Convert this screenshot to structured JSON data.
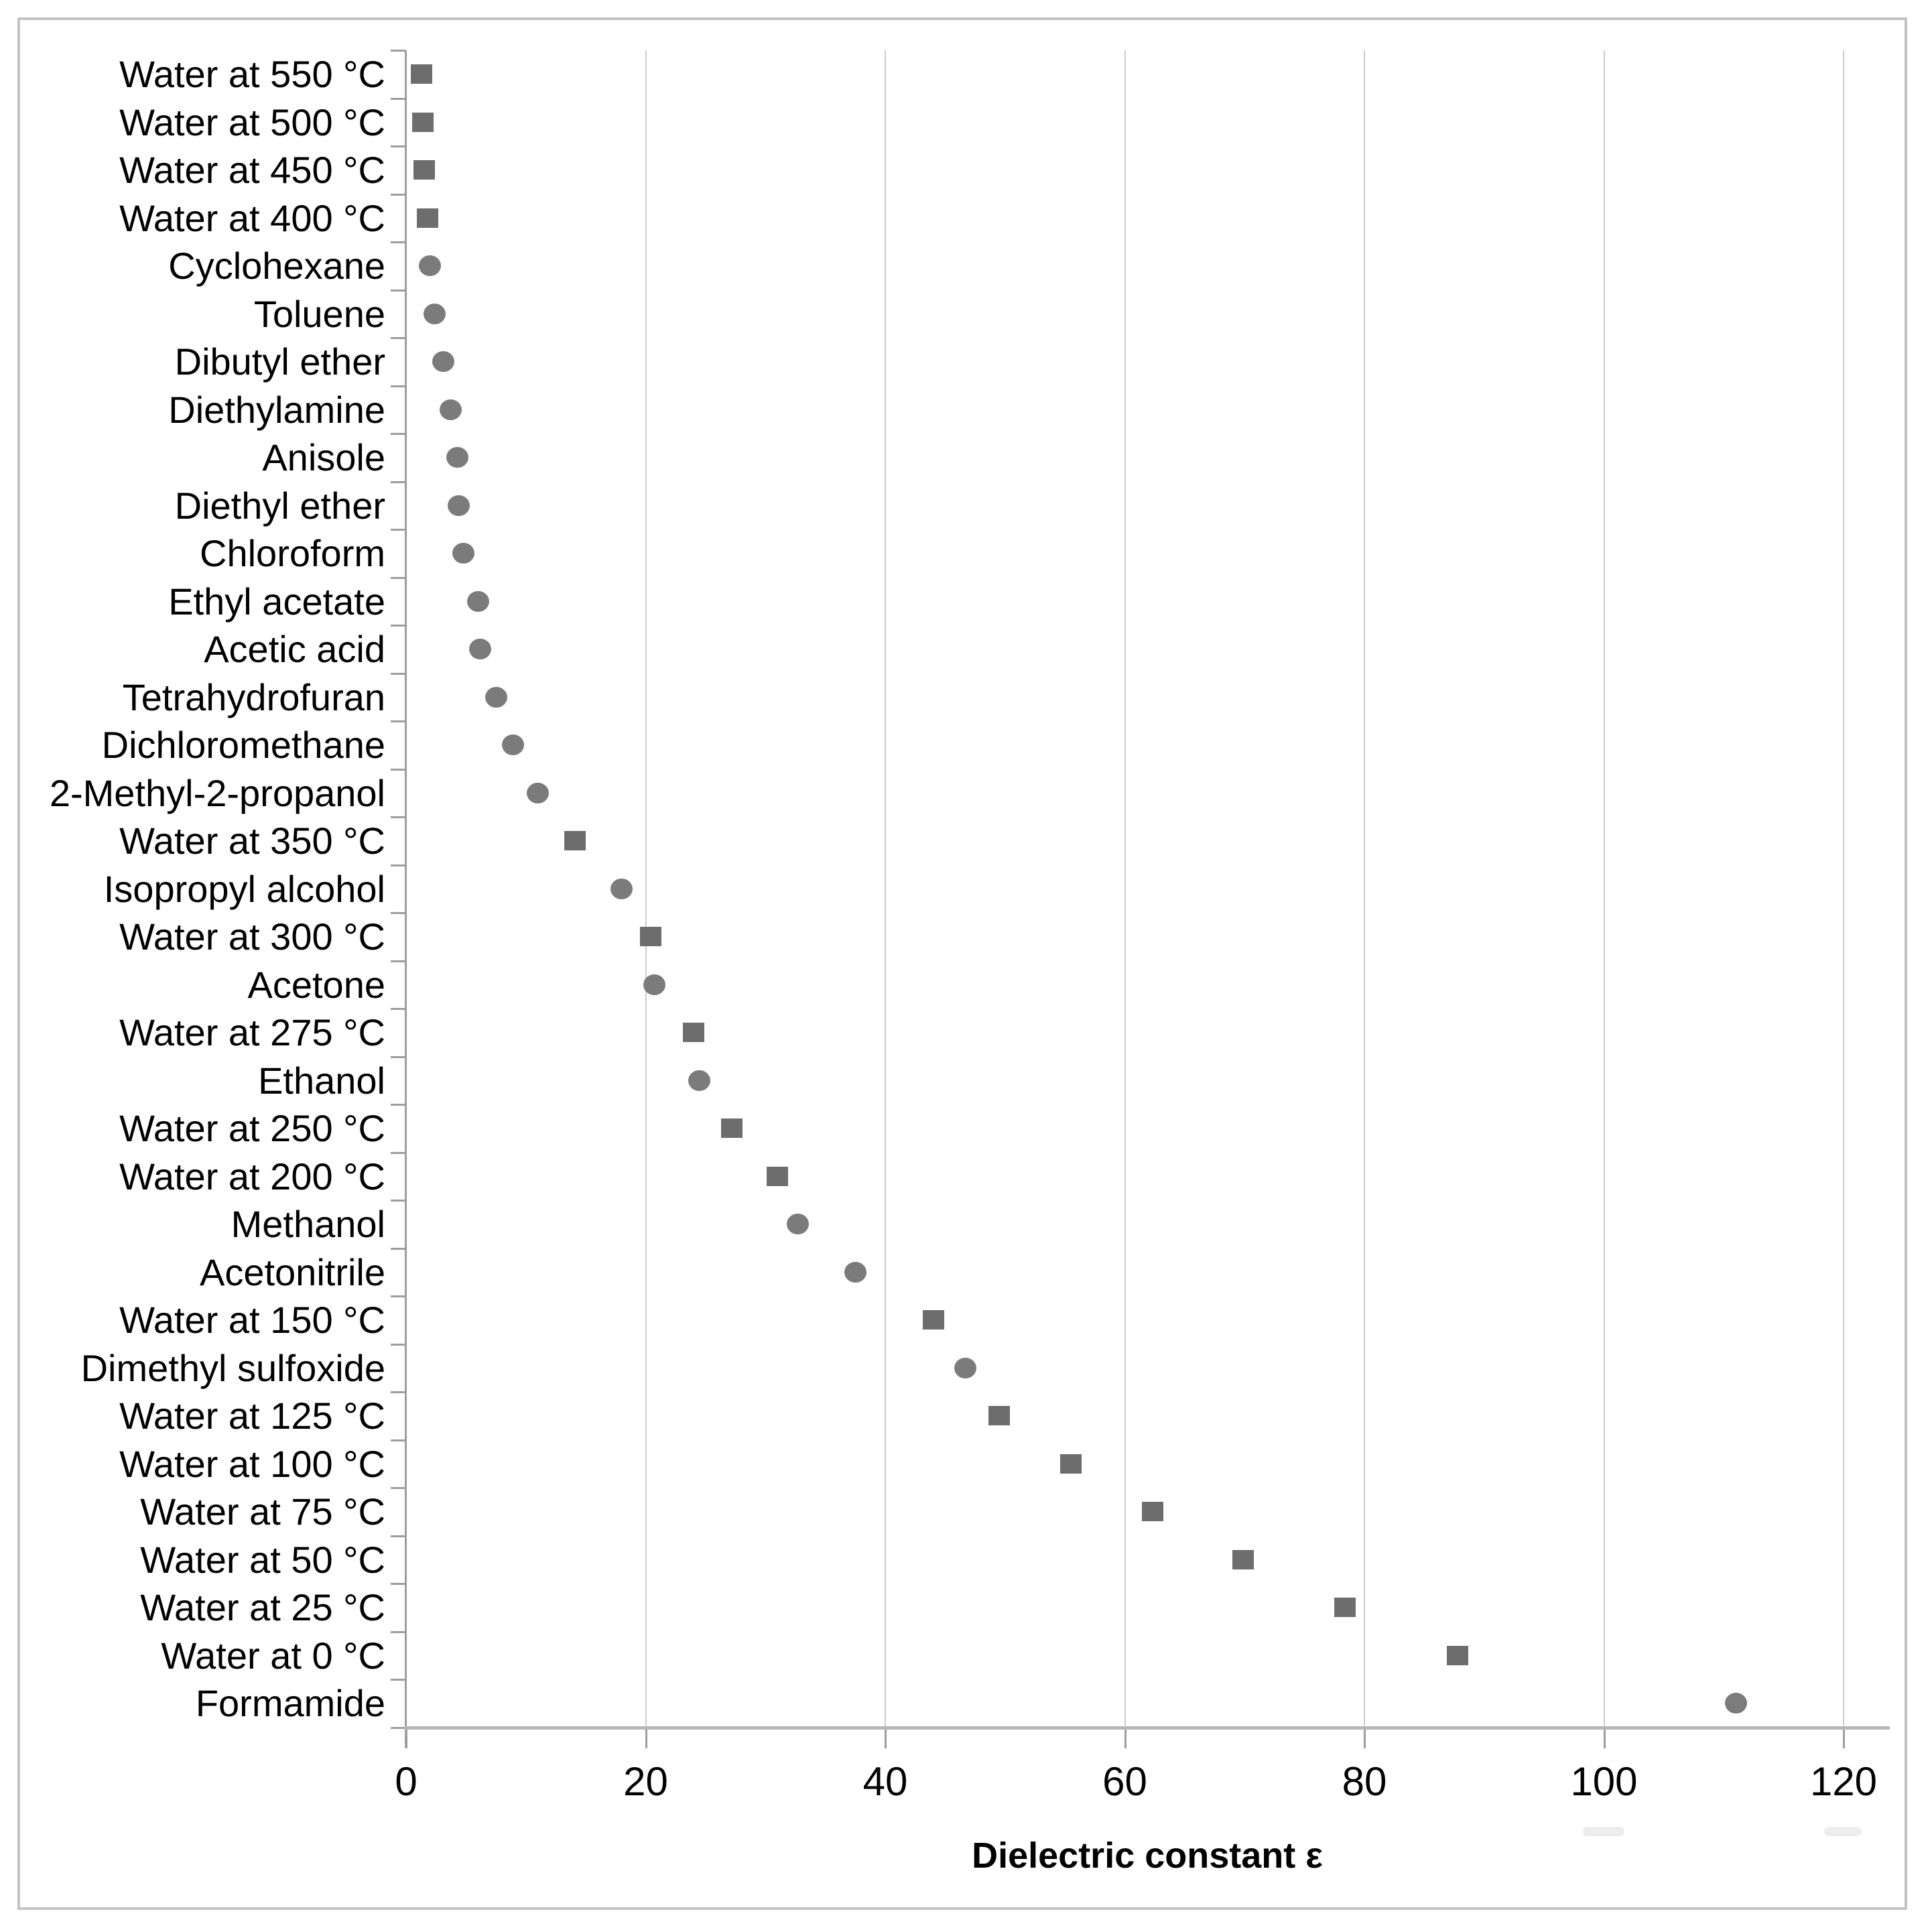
{
  "chart_data": {
    "type": "scatter",
    "orientation": "horizontal-categories",
    "title": "",
    "xlabel": "Dielectric constant ε",
    "ylabel": "",
    "xlim": [
      0,
      120
    ],
    "x_ticks": [
      0,
      20,
      40,
      60,
      80,
      100,
      120
    ],
    "grid": "vertical gridlines at each x tick",
    "legend_position": "none",
    "marker_semantics": {
      "square": "water at given temperature",
      "circle": "organic solvent at ambient conditions"
    },
    "points": [
      {
        "label": "Water at 550 °C",
        "value": 1.3,
        "marker": "square"
      },
      {
        "label": "Water at 500 °C",
        "value": 1.4,
        "marker": "square"
      },
      {
        "label": "Water at 450 °C",
        "value": 1.5,
        "marker": "square"
      },
      {
        "label": "Water at 400 °C",
        "value": 1.8,
        "marker": "square"
      },
      {
        "label": "Cyclohexane",
        "value": 2.0,
        "marker": "circle"
      },
      {
        "label": "Toluene",
        "value": 2.4,
        "marker": "circle"
      },
      {
        "label": "Dibutyl ether",
        "value": 3.1,
        "marker": "circle"
      },
      {
        "label": "Diethylamine",
        "value": 3.7,
        "marker": "circle"
      },
      {
        "label": "Anisole",
        "value": 4.3,
        "marker": "circle"
      },
      {
        "label": "Diethyl ether",
        "value": 4.4,
        "marker": "circle"
      },
      {
        "label": "Chloroform",
        "value": 4.8,
        "marker": "circle"
      },
      {
        "label": "Ethyl acetate",
        "value": 6.0,
        "marker": "circle"
      },
      {
        "label": "Acetic acid",
        "value": 6.2,
        "marker": "circle"
      },
      {
        "label": "Tetrahydrofuran",
        "value": 7.5,
        "marker": "circle"
      },
      {
        "label": "Dichloromethane",
        "value": 8.9,
        "marker": "circle"
      },
      {
        "label": "2-Methyl-2-propanol",
        "value": 11.0,
        "marker": "circle"
      },
      {
        "label": "Water at 350 °C",
        "value": 14.1,
        "marker": "square"
      },
      {
        "label": "Isopropyl alcohol",
        "value": 18.0,
        "marker": "circle"
      },
      {
        "label": "Water at 300 °C",
        "value": 20.4,
        "marker": "square"
      },
      {
        "label": "Acetone",
        "value": 20.7,
        "marker": "circle"
      },
      {
        "label": "Water at 275 °C",
        "value": 24.0,
        "marker": "square"
      },
      {
        "label": "Ethanol",
        "value": 24.5,
        "marker": "circle"
      },
      {
        "label": "Water at 250 °C",
        "value": 27.2,
        "marker": "square"
      },
      {
        "label": "Water at 200 °C",
        "value": 31.0,
        "marker": "square"
      },
      {
        "label": "Methanol",
        "value": 32.7,
        "marker": "circle"
      },
      {
        "label": "Acetonitrile",
        "value": 37.5,
        "marker": "circle"
      },
      {
        "label": "Water at 150 °C",
        "value": 44.0,
        "marker": "square"
      },
      {
        "label": "Dimethyl sulfoxide",
        "value": 46.7,
        "marker": "circle"
      },
      {
        "label": "Water at 125 °C",
        "value": 49.5,
        "marker": "square"
      },
      {
        "label": "Water at 100 °C",
        "value": 55.5,
        "marker": "square"
      },
      {
        "label": "Water at 75 °C",
        "value": 62.3,
        "marker": "square"
      },
      {
        "label": "Water at 50 °C",
        "value": 69.9,
        "marker": "square"
      },
      {
        "label": "Water at 25 °C",
        "value": 78.4,
        "marker": "square"
      },
      {
        "label": "Water at 0 °C",
        "value": 87.8,
        "marker": "square"
      },
      {
        "label": "Formamide",
        "value": 111,
        "marker": "circle"
      }
    ]
  },
  "colors": {
    "marker_square": "#6d6d6d",
    "marker_circle": "#7b7b7b",
    "gridline": "#cbcbcb",
    "axis": "#9d9d9d",
    "frame_border": "#c3c3c3",
    "text": "#000000",
    "background": "#ffffff"
  }
}
